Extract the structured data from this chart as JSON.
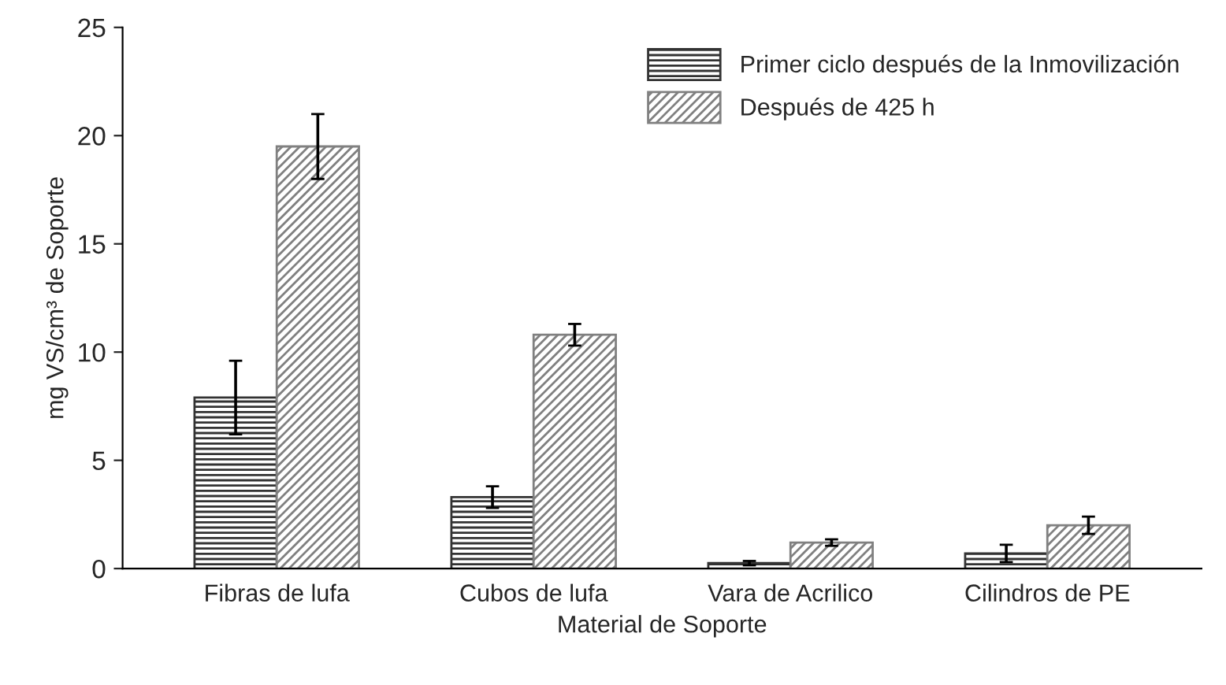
{
  "chart_data": {
    "type": "bar",
    "xlabel": "Material de Soporte",
    "ylabel": "mg VS/cm³ de Soporte",
    "categories": [
      "Fibras de lufa",
      "Cubos de lufa",
      "Vara de Acrilico",
      "Cilindros de PE"
    ],
    "series": [
      {
        "name": "Primer ciclo después de la Inmovilización",
        "color": "#333333",
        "values": [
          7.9,
          3.3,
          0.25,
          0.7
        ],
        "errors": [
          1.7,
          0.5,
          0.1,
          0.4
        ]
      },
      {
        "name": "Después de 425 h",
        "color": "#808080",
        "values": [
          19.5,
          10.8,
          1.2,
          2.0
        ],
        "errors": [
          1.5,
          0.5,
          0.15,
          0.4
        ]
      }
    ],
    "ylim": [
      0,
      25
    ],
    "yticks": [
      0,
      5,
      10,
      15,
      20,
      25
    ],
    "grid": false,
    "legend": "top right"
  }
}
